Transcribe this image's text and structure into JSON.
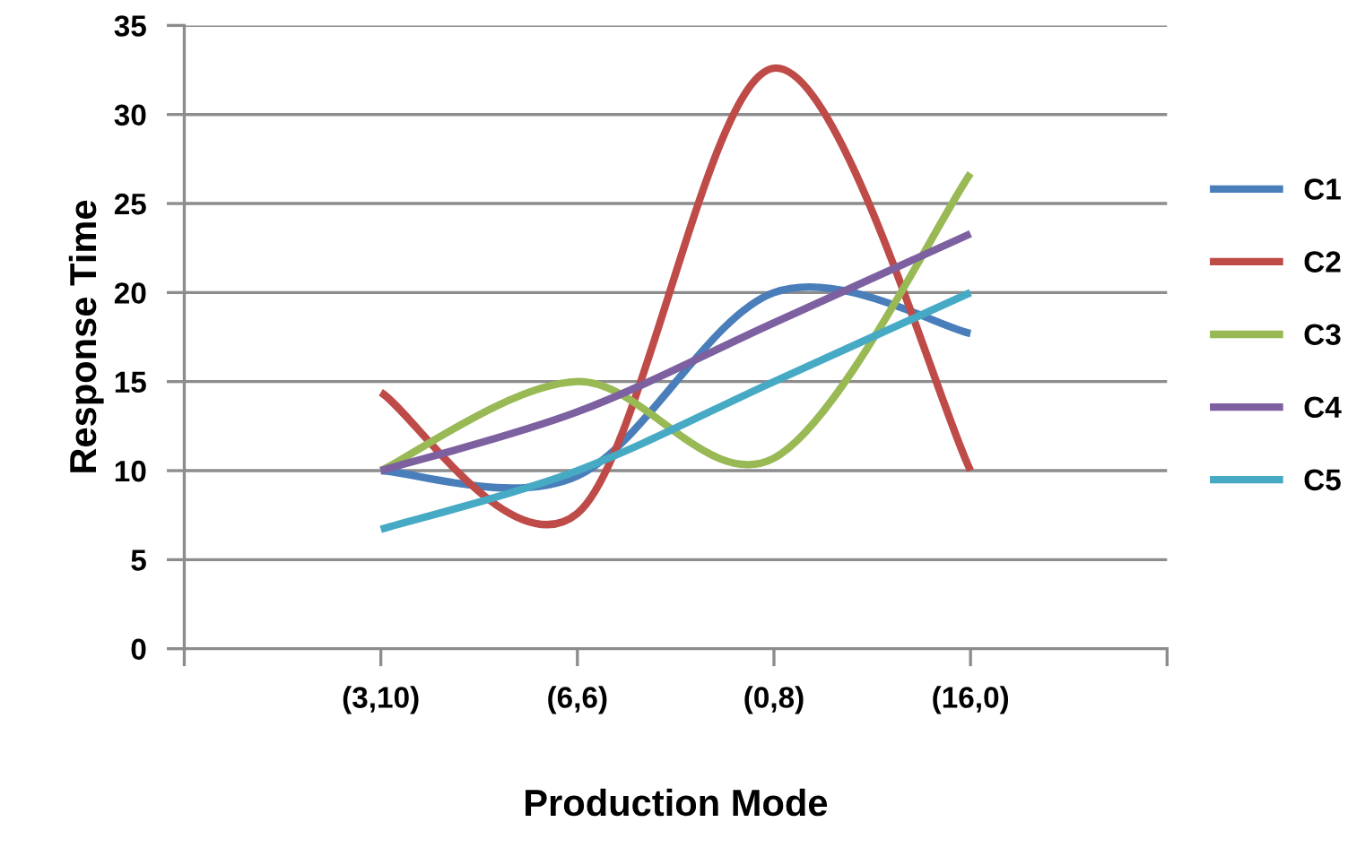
{
  "chart_data": {
    "type": "line",
    "xlabel": "Production Mode",
    "ylabel": "Response Time",
    "categories": [
      null,
      "(3,10)",
      "(6,6)",
      "(0,8)",
      "(16,0)",
      null
    ],
    "series": [
      {
        "name": "C1",
        "color": "#4a7ebb",
        "values": [
          null,
          10,
          9.7,
          20,
          17.7,
          null
        ]
      },
      {
        "name": "C2",
        "color": "#be4b48",
        "values": [
          null,
          14.4,
          7.6,
          32.6,
          10,
          null
        ]
      },
      {
        "name": "C3",
        "color": "#98b954",
        "values": [
          null,
          10,
          15,
          10.7,
          26.7,
          null
        ]
      },
      {
        "name": "C4",
        "color": "#7d60a0",
        "values": [
          null,
          10,
          13.3,
          18.3,
          23.3,
          null
        ]
      },
      {
        "name": "C5",
        "color": "#46aac5",
        "values": [
          null,
          6.7,
          10,
          15,
          20,
          null
        ]
      }
    ],
    "ylim": [
      0,
      35
    ],
    "yticks": [
      0,
      5,
      10,
      15,
      20,
      25,
      30,
      35
    ],
    "grid": "y",
    "legend": "right",
    "marker": "none",
    "line_style": "solid"
  }
}
